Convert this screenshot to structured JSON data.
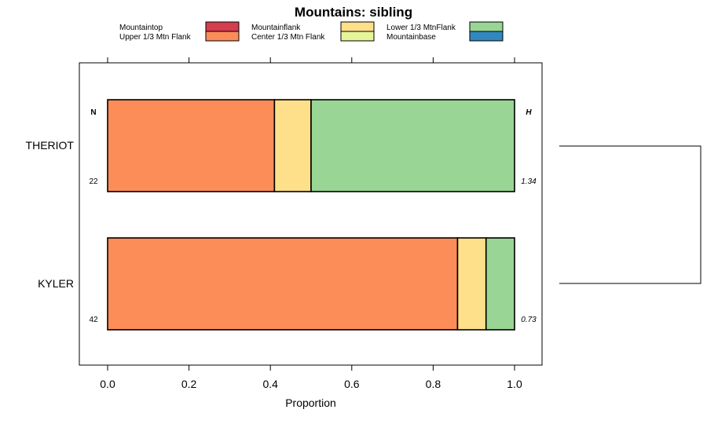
{
  "chart_data": {
    "type": "bar",
    "orientation": "horizontal",
    "stacked": true,
    "title": "Mountains: sibling",
    "xlabel": "Proportion",
    "xlim": [
      -0.07,
      1.07
    ],
    "xticks": [
      0.0,
      0.2,
      0.4,
      0.6,
      0.8,
      1.0
    ],
    "xtick_labels": [
      "0.0",
      "0.2",
      "0.4",
      "0.6",
      "0.8",
      "1.0"
    ],
    "grid": false,
    "legend_position": "top",
    "categories": [
      "THERIOT",
      "KYLER"
    ],
    "series": [
      {
        "name": "Mountaintop",
        "color": "#d53e4f",
        "values": [
          0.0,
          0.0
        ]
      },
      {
        "name": "Upper 1/3 Mtn Flank",
        "color": "#fc8d59",
        "values": [
          0.41,
          0.86
        ]
      },
      {
        "name": "Mountainflank",
        "color": "#fee08b",
        "values": [
          0.09,
          0.07
        ]
      },
      {
        "name": "Center 1/3 Mtn Flank",
        "color": "#e6f598",
        "values": [
          0.0,
          0.0
        ]
      },
      {
        "name": "Lower 1/3 MtnFlank",
        "color": "#99d594",
        "values": [
          0.5,
          0.07
        ]
      },
      {
        "name": "Mountainbase",
        "color": "#3288bd",
        "values": [
          0.0,
          0.0
        ]
      }
    ],
    "n_header": "N",
    "h_header": "H",
    "n_values": [
      "22",
      "42"
    ],
    "h_values": [
      "1.34",
      "0.73"
    ],
    "dendrogram": true
  }
}
